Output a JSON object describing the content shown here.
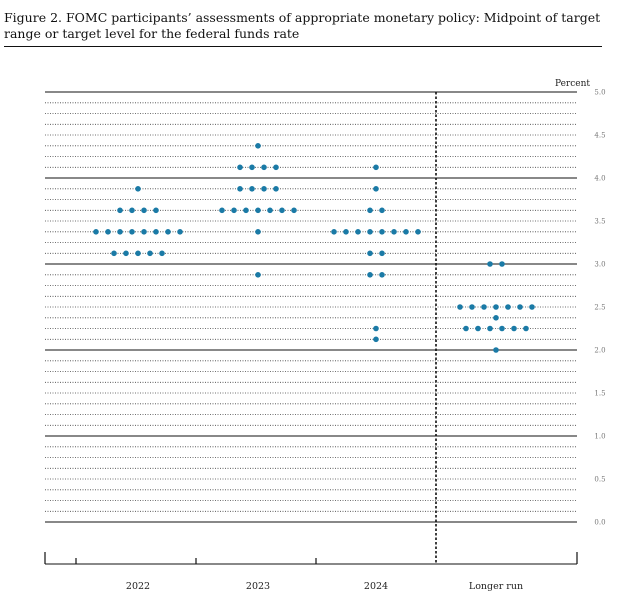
{
  "figure": {
    "title": "Figure 2. FOMC participants’ assessments of appropriate monetary policy: Midpoint of target range or target level for the federal funds rate"
  },
  "chart_data": {
    "type": "scatter",
    "subtype": "dot-plot",
    "title": "Figure 2. FOMC participants’ assessments of appropriate monetary policy: Midpoint of target range or target level for the federal funds rate",
    "ylabel": "Percent",
    "ylim": [
      0,
      5
    ],
    "yticks": [
      "0.0",
      "0.5",
      "1.0",
      "1.5",
      "2.0",
      "2.5",
      "3.0",
      "3.5",
      "4.0",
      "4.5",
      "5.0"
    ],
    "categories": [
      "2022",
      "2023",
      "2024",
      "Longer run"
    ],
    "grid": true,
    "dot_color": "#1a7aa6",
    "series": [
      {
        "name": "",
        "category": "2022",
        "dots": [
          {
            "y": 3.875,
            "count": 1
          },
          {
            "y": 3.625,
            "count": 4
          },
          {
            "y": 3.375,
            "count": 8
          },
          {
            "y": 3.125,
            "count": 5
          }
        ]
      },
      {
        "name": "",
        "category": "2023",
        "dots": [
          {
            "y": 4.375,
            "count": 1
          },
          {
            "y": 4.125,
            "count": 4
          },
          {
            "y": 3.875,
            "count": 4
          },
          {
            "y": 3.625,
            "count": 7
          },
          {
            "y": 3.375,
            "count": 1
          },
          {
            "y": 2.875,
            "count": 1
          }
        ]
      },
      {
        "name": "",
        "category": "2024",
        "dots": [
          {
            "y": 4.125,
            "count": 1
          },
          {
            "y": 3.875,
            "count": 1
          },
          {
            "y": 3.625,
            "count": 2
          },
          {
            "y": 3.375,
            "count": 8
          },
          {
            "y": 3.125,
            "count": 2
          },
          {
            "y": 2.875,
            "count": 2
          },
          {
            "y": 2.25,
            "count": 1
          },
          {
            "y": 2.125,
            "count": 1
          }
        ]
      },
      {
        "name": "",
        "category": "Longer run",
        "dots": [
          {
            "y": 3.0,
            "count": 2
          },
          {
            "y": 2.5,
            "count": 7
          },
          {
            "y": 2.375,
            "count": 1
          },
          {
            "y": 2.25,
            "count": 6
          },
          {
            "y": 2.0,
            "count": 1
          }
        ]
      }
    ]
  }
}
